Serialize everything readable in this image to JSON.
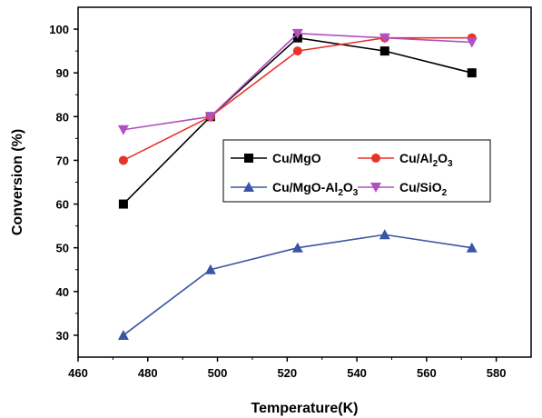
{
  "chart_data": {
    "type": "line",
    "title": "",
    "xlabel": "Temperature(K)",
    "ylabel": "Conversion (%)",
    "xlim": [
      460,
      590
    ],
    "ylim": [
      25,
      105
    ],
    "xticks": [
      460,
      480,
      500,
      520,
      540,
      560,
      580
    ],
    "yticks": [
      30,
      40,
      50,
      60,
      70,
      80,
      90,
      100
    ],
    "grid": false,
    "legend_position": "center-right",
    "x": [
      473,
      498,
      523,
      548,
      573
    ],
    "series": [
      {
        "name": "Cu/MgO",
        "name_base": "Cu/MgO",
        "name_subscript_parts": [],
        "color": "#000000",
        "marker": "square",
        "values": [
          60,
          80,
          98,
          95,
          90
        ]
      },
      {
        "name": "Cu/Al2O3",
        "name_base": "Cu/Al",
        "name_subscript_parts": [
          "2",
          "O",
          "3"
        ],
        "color": "#e8332a",
        "marker": "circle",
        "values": [
          70,
          80,
          95,
          98,
          98
        ]
      },
      {
        "name": "Cu/MgO-Al2O3",
        "name_base": "Cu/MgO-Al",
        "name_subscript_parts": [
          "2",
          "O",
          "3"
        ],
        "color": "#3a55a4",
        "marker": "triangle-up",
        "values": [
          30,
          45,
          50,
          53,
          50
        ]
      },
      {
        "name": "Cu/SiO2",
        "name_base": "Cu/SiO",
        "name_subscript_parts": [
          "2"
        ],
        "color": "#b150c0",
        "marker": "triangle-down",
        "values": [
          77,
          80,
          99,
          98,
          97
        ]
      }
    ]
  }
}
